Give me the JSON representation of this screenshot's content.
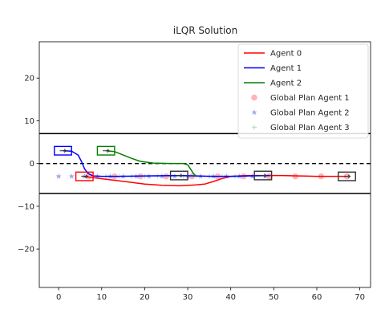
{
  "chart_data": {
    "type": "line",
    "title": "iLQR Solution",
    "xlabel": "",
    "ylabel": "",
    "xlim": [
      -4.5,
      72.5
    ],
    "ylim": [
      -29,
      28.5
    ],
    "x_ticks": [
      0,
      10,
      20,
      30,
      40,
      50,
      60,
      70
    ],
    "y_ticks": [
      20,
      10,
      0,
      -10,
      -20
    ],
    "x_tick_labels": [
      "0",
      "10",
      "20",
      "30",
      "40",
      "50",
      "60",
      "70"
    ],
    "y_tick_labels": [
      "20",
      "10",
      "0",
      "−10",
      "−20"
    ],
    "legend_position": "top-right",
    "road": {
      "upper_boundary": 7,
      "lower_boundary": -7,
      "center_dashed": 0
    },
    "series": [
      {
        "name": "Agent 0",
        "kind": "line",
        "color": "#ff0000",
        "x": [
          5.9,
          8,
          12,
          16,
          20,
          24,
          28,
          32,
          34,
          36,
          38,
          40,
          44,
          48,
          52,
          56,
          60,
          64,
          67
        ],
        "y": [
          -3,
          -3.3,
          -3.8,
          -4.3,
          -4.8,
          -5.1,
          -5.2,
          -5.0,
          -4.8,
          -4.2,
          -3.5,
          -3.0,
          -2.8,
          -2.8,
          -2.8,
          -2.9,
          -3.0,
          -3.0,
          -3.0
        ]
      },
      {
        "name": "Agent 1",
        "kind": "line",
        "color": "#0000ff",
        "x": [
          1,
          3,
          4.5,
          5.3,
          6,
          6.8,
          8,
          10,
          14,
          20,
          28,
          32,
          36,
          40,
          44,
          49
        ],
        "y": [
          3,
          2.9,
          2.0,
          0.5,
          -1.2,
          -2.3,
          -2.9,
          -3.0,
          -3.0,
          -2.9,
          -2.8,
          -2.9,
          -3.0,
          -3.0,
          -2.9,
          -2.8
        ]
      },
      {
        "name": "Agent 2",
        "kind": "line",
        "color": "#008000",
        "x": [
          11,
          13,
          15,
          17,
          19,
          22,
          26,
          29,
          30,
          30.6,
          31.3,
          32
        ],
        "y": [
          3,
          2.8,
          2.0,
          1.2,
          0.5,
          0.1,
          0.0,
          0.0,
          -0.3,
          -1.2,
          -2.3,
          -3.0
        ]
      },
      {
        "name": "Global Plan Agent 1",
        "kind": "scatter",
        "marker": "circle",
        "color": "#ff9c9c",
        "x": [
          7,
          13,
          19,
          25,
          31,
          37,
          43,
          49,
          55,
          61,
          67
        ],
        "y": [
          -3,
          -3,
          -3,
          -3,
          -3,
          -3,
          -3,
          -3,
          -3,
          -3,
          -3
        ]
      },
      {
        "name": "Global Plan Agent 2",
        "kind": "scatter",
        "marker": "star",
        "color": "#a7a7f6",
        "x": [
          0,
          3,
          6,
          9,
          12,
          15,
          18,
          21,
          24,
          27,
          30,
          33,
          36,
          39,
          42,
          45,
          48
        ],
        "y": [
          -3,
          -3,
          -3,
          -3,
          -3,
          -3,
          -3,
          -3,
          -3,
          -3,
          -3,
          -3,
          -3,
          -3,
          -3,
          -3,
          -3
        ]
      },
      {
        "name": "Global Plan Agent 3",
        "kind": "scatter",
        "marker": "plus",
        "color": "#b9dcc8",
        "x": [
          11,
          14,
          17,
          20,
          23,
          26,
          29,
          32,
          35,
          38,
          41
        ],
        "y": [
          -3,
          -3,
          -3,
          -3,
          -3,
          -3,
          -3,
          -3,
          -3,
          -3,
          -3
        ]
      }
    ],
    "vehicles": [
      {
        "agent": "Agent 0",
        "x": 6,
        "y": -3,
        "color": "#ff0000"
      },
      {
        "agent": "Agent 1",
        "x": 1,
        "y": 3,
        "color": "#0000ff"
      },
      {
        "agent": "Agent 2",
        "x": 11,
        "y": 3,
        "color": "#008000"
      },
      {
        "agent": "Agent 1",
        "x": 28,
        "y": -2.8,
        "color": "#333333"
      },
      {
        "agent": "Agent 2",
        "x": 47.5,
        "y": -2.8,
        "color": "#333333"
      },
      {
        "agent": "Agent 0",
        "x": 67,
        "y": -3,
        "color": "#333333"
      }
    ],
    "vehicle_size": [
      4,
      2
    ]
  }
}
